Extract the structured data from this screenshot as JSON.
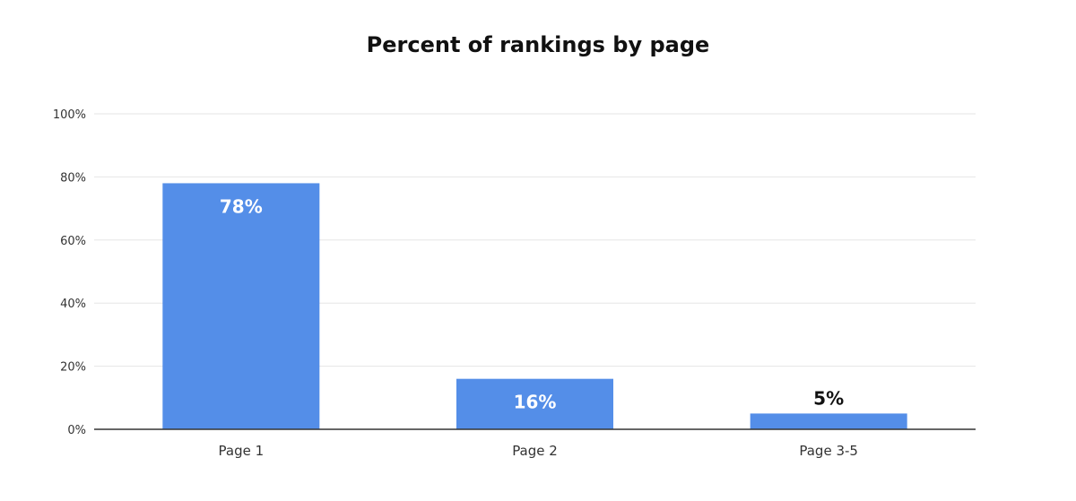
{
  "chart_data": {
    "type": "bar",
    "title": "Percent of rankings by page",
    "xlabel": "",
    "ylabel": "",
    "categories": [
      "Page 1",
      "Page 2",
      "Page 3-5"
    ],
    "values": [
      78,
      16,
      5
    ],
    "data_labels": [
      "78%",
      "16%",
      "5%"
    ],
    "ylim": [
      0,
      100
    ],
    "y_ticks": [
      0,
      20,
      40,
      60,
      80,
      100
    ],
    "y_tick_labels": [
      "0%",
      "20%",
      "40%",
      "60%",
      "80%",
      "100%"
    ],
    "grid": true,
    "legend": "none",
    "colors": {
      "bar": "#548ee8",
      "label_inside": "#ffffff",
      "label_outside": "#111111",
      "grid": "#e6e6e6",
      "axis": "#333333",
      "tick_text": "#333333"
    }
  }
}
